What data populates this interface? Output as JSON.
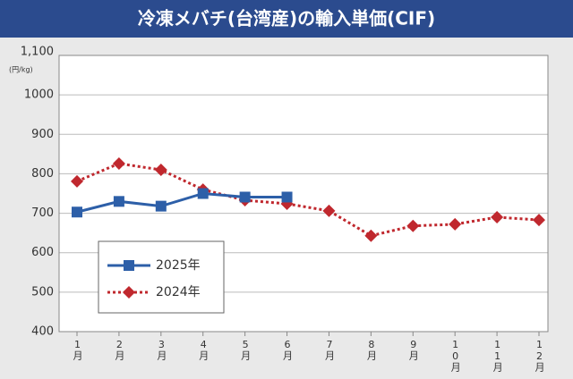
{
  "chart_data": {
    "type": "line",
    "title": "冷凍メバチ(台湾産)の輸入単価(CIF)",
    "y_label": "(円/kg)",
    "categories": [
      "1月",
      "2月",
      "3月",
      "4月",
      "5月",
      "6月",
      "7月",
      "8月",
      "9月",
      "10月",
      "11月",
      "12月"
    ],
    "series": [
      {
        "name": "2025年",
        "color": "#2d5fa8",
        "marker": "square",
        "dash": "solid",
        "values": [
          703,
          730,
          718,
          750,
          741,
          741,
          null,
          null,
          null,
          null,
          null,
          null
        ]
      },
      {
        "name": "2024年",
        "color": "#c0282e",
        "marker": "diamond",
        "dash": "dotted",
        "values": [
          781,
          826,
          810,
          760,
          733,
          724,
          706,
          643,
          668,
          672,
          690,
          683
        ]
      }
    ],
    "ylim": [
      400,
      1100
    ],
    "yticks": [
      400,
      500,
      600,
      700,
      800,
      900,
      1000,
      {
        "value": 1100,
        "label": "1,100"
      }
    ],
    "grid": true
  }
}
